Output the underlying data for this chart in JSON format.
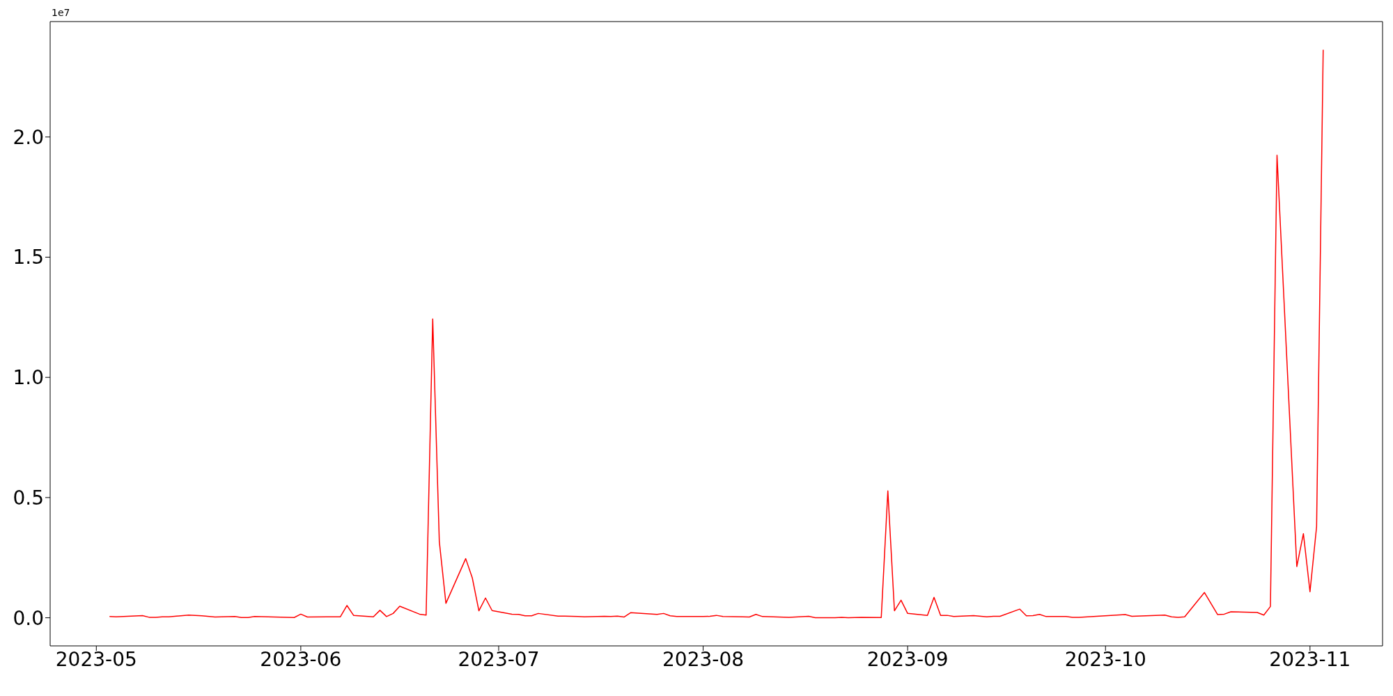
{
  "chart_data": {
    "type": "line",
    "annotations": [
      "1e7"
    ],
    "x": [
      "2023-05-03",
      "2023-05-04",
      "2023-05-08",
      "2023-05-09",
      "2023-05-10",
      "2023-05-11",
      "2023-05-12",
      "2023-05-15",
      "2023-05-17",
      "2023-05-19",
      "2023-05-22",
      "2023-05-23",
      "2023-05-24",
      "2023-05-25",
      "2023-05-31",
      "2023-06-01",
      "2023-06-02",
      "2023-06-05",
      "2023-06-07",
      "2023-06-08",
      "2023-06-09",
      "2023-06-12",
      "2023-06-13",
      "2023-06-14",
      "2023-06-15",
      "2023-06-16",
      "2023-06-19",
      "2023-06-20",
      "2023-06-21",
      "2023-06-22",
      "2023-06-23",
      "2023-06-26",
      "2023-06-27",
      "2023-06-28",
      "2023-06-29",
      "2023-06-30",
      "2023-07-03",
      "2023-07-04",
      "2023-07-05",
      "2023-07-06",
      "2023-07-07",
      "2023-07-10",
      "2023-07-11",
      "2023-07-13",
      "2023-07-14",
      "2023-07-17",
      "2023-07-18",
      "2023-07-19",
      "2023-07-20",
      "2023-07-21",
      "2023-07-25",
      "2023-07-26",
      "2023-07-27",
      "2023-07-28",
      "2023-07-31",
      "2023-08-01",
      "2023-08-02",
      "2023-08-03",
      "2023-08-04",
      "2023-08-07",
      "2023-08-08",
      "2023-08-09",
      "2023-08-10",
      "2023-08-14",
      "2023-08-17",
      "2023-08-18",
      "2023-08-21",
      "2023-08-22",
      "2023-08-23",
      "2023-08-25",
      "2023-08-28",
      "2023-08-29",
      "2023-08-30",
      "2023-08-31",
      "2023-09-01",
      "2023-09-04",
      "2023-09-05",
      "2023-09-06",
      "2023-09-07",
      "2023-09-08",
      "2023-09-11",
      "2023-09-13",
      "2023-09-14",
      "2023-09-15",
      "2023-09-18",
      "2023-09-19",
      "2023-09-20",
      "2023-09-21",
      "2023-09-22",
      "2023-09-25",
      "2023-09-26",
      "2023-09-27",
      "2023-10-04",
      "2023-10-05",
      "2023-10-10",
      "2023-10-11",
      "2023-10-12",
      "2023-10-13",
      "2023-10-16",
      "2023-10-18",
      "2023-10-19",
      "2023-10-20",
      "2023-10-24",
      "2023-10-25",
      "2023-10-26",
      "2023-10-27",
      "2023-10-30",
      "2023-10-31",
      "2023-11-01",
      "2023-11-02",
      "2023-11-03"
    ],
    "series": [
      {
        "color": "#ff0000",
        "values": [
          0.005,
          0.004,
          0.009,
          0.002,
          0.002,
          0.004,
          0.004,
          0.011,
          0.008,
          0.003,
          0.005,
          0.001,
          0.001,
          0.005,
          0.001,
          0.015,
          0.003,
          0.004,
          0.004,
          0.051,
          0.01,
          0.004,
          0.031,
          0.005,
          0.018,
          0.048,
          0.015,
          0.011,
          1.243,
          0.317,
          0.06,
          0.246,
          0.166,
          0.029,
          0.082,
          0.03,
          0.015,
          0.014,
          0.008,
          0.008,
          0.018,
          0.007,
          0.007,
          0.005,
          0.004,
          0.006,
          0.005,
          0.007,
          0.003,
          0.021,
          0.014,
          0.018,
          0.008,
          0.005,
          0.005,
          0.005,
          0.006,
          0.01,
          0.005,
          0.004,
          0.003,
          0.014,
          0.005,
          0.002,
          0.006,
          0.0,
          0.0,
          0.002,
          0.0,
          0.002,
          0.001,
          0.528,
          0.029,
          0.073,
          0.018,
          0.01,
          0.085,
          0.01,
          0.01,
          0.005,
          0.009,
          0.004,
          0.006,
          0.006,
          0.036,
          0.008,
          0.009,
          0.014,
          0.005,
          0.005,
          0.002,
          0.002,
          0.013,
          0.006,
          0.011,
          0.004,
          0.002,
          0.004,
          0.105,
          0.013,
          0.015,
          0.025,
          0.022,
          0.011,
          0.047,
          1.924,
          0.213,
          0.35,
          0.108,
          0.379,
          2.363
        ]
      }
    ],
    "xlim": [
      "2023-04-24",
      "2023-11-12"
    ],
    "xticks": [
      "2023-05",
      "2023-06",
      "2023-07",
      "2023-08",
      "2023-09",
      "2023-10",
      "2023-11"
    ],
    "ylim": [
      -0.117,
      2.48
    ],
    "yticks": [
      {
        "value": 0,
        "label": "0.0"
      },
      {
        "value": 0.5,
        "label": "0.5"
      },
      {
        "value": 1,
        "label": "1.0"
      },
      {
        "value": 1.5,
        "label": "1.5"
      },
      {
        "value": 2,
        "label": "2.0"
      }
    ],
    "grid": false,
    "legend": false,
    "marker": "none",
    "line_style": "solid"
  }
}
